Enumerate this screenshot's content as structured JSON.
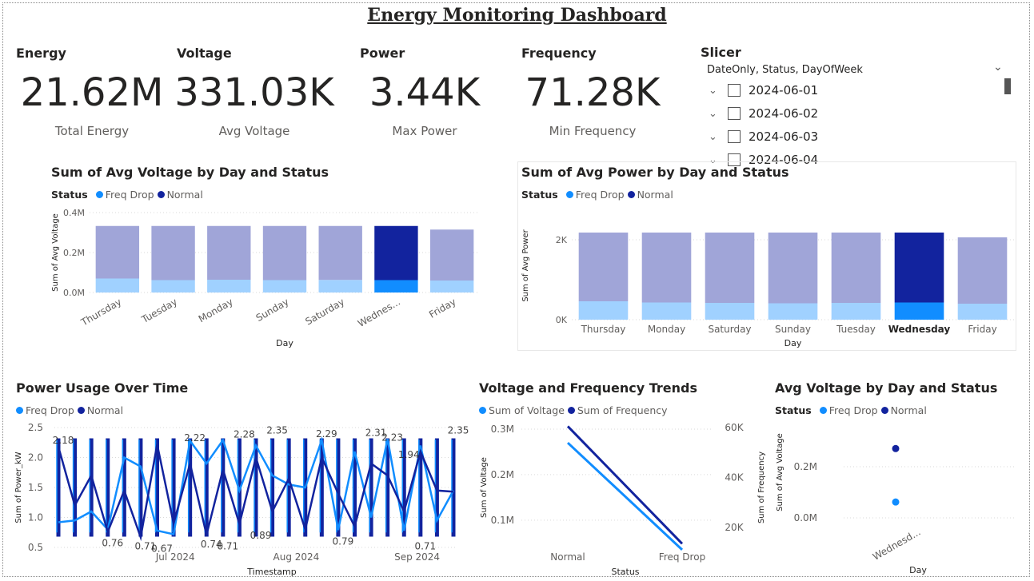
{
  "page_title": "Energy Monitoring Dashboard",
  "colors": {
    "freq_drop": "#118dff",
    "normal": "#12239e",
    "freq_drop_muted": "#a0d1ff",
    "normal_muted": "#a0a5d8",
    "grid": "#d9d9d9"
  },
  "kpis": [
    {
      "label": "Energy",
      "value": "21.62M",
      "caption": "Total Energy"
    },
    {
      "label": "Voltage",
      "value": "331.03K",
      "caption": "Avg Voltage"
    },
    {
      "label": "Power",
      "value": "3.44K",
      "caption": "Max Power"
    },
    {
      "label": "Frequency",
      "value": "71.28K",
      "caption": "Min Frequency"
    }
  ],
  "slicer": {
    "title": "Slicer",
    "header": "DateOnly, Status, DayOfWeek",
    "items": [
      "2024-06-01",
      "2024-06-02",
      "2024-06-03",
      "2024-06-04"
    ]
  },
  "legend_status_label": "Status",
  "chart_data": [
    {
      "id": "voltage_bar",
      "type": "bar",
      "title": "Sum of Avg Voltage by Day and Status",
      "xlabel": "Day",
      "ylabel": "Sum of Avg Voltage",
      "categories": [
        "Thursday",
        "Tuesday",
        "Monday",
        "Sunday",
        "Saturday",
        "Wednes...",
        "Friday"
      ],
      "highlight": "Wednes...",
      "yticks": [
        "0.0M",
        "0.2M",
        "0.4M"
      ],
      "ylim": [
        0,
        400000
      ],
      "legend": [
        "Freq Drop",
        "Normal"
      ],
      "series": [
        {
          "name": "Freq Drop",
          "values": [
            70000,
            62000,
            64000,
            62000,
            63000,
            62000,
            60000
          ]
        },
        {
          "name": "Normal",
          "values": [
            263000,
            271000,
            269000,
            271000,
            270000,
            271000,
            255000
          ]
        }
      ]
    },
    {
      "id": "power_bar",
      "type": "bar",
      "title": "Sum of Avg Power by Day and Status",
      "xlabel": "Day",
      "ylabel": "Sum of Avg Power",
      "categories": [
        "Thursday",
        "Monday",
        "Saturday",
        "Sunday",
        "Tuesday",
        "Wednesday",
        "Friday"
      ],
      "highlight": "Wednesday",
      "yticks": [
        "0K",
        "2K"
      ],
      "ylim": [
        0,
        2700
      ],
      "legend": [
        "Freq Drop",
        "Normal"
      ],
      "series": [
        {
          "name": "Freq Drop",
          "values": [
            460,
            430,
            420,
            410,
            420,
            430,
            400
          ]
        },
        {
          "name": "Normal",
          "values": [
            1720,
            1750,
            1760,
            1770,
            1760,
            1750,
            1660
          ]
        }
      ]
    },
    {
      "id": "power_line",
      "type": "line",
      "title": "Power Usage Over Time",
      "xlabel": "Timestamp",
      "ylabel": "Sum of Power_kW",
      "ylim": [
        0.5,
        2.5
      ],
      "yticks": [
        "0.5",
        "1.0",
        "1.5",
        "2.0",
        "2.5"
      ],
      "xticks": [
        "Jul 2024",
        "Aug 2024",
        "Sep 2024"
      ],
      "legend": [
        "Freq Drop",
        "Normal"
      ],
      "series": [
        {
          "name": "Freq Drop",
          "values": [
            0.92,
            0.95,
            1.1,
            0.8,
            2.0,
            1.85,
            0.78,
            0.72,
            2.28,
            1.9,
            2.29,
            1.45,
            2.2,
            1.7,
            1.55,
            1.5,
            2.29,
            0.79,
            2.1,
            1.0,
            2.31,
            0.78,
            2.2,
            0.95,
            1.45
          ]
        },
        {
          "name": "Normal",
          "values": [
            2.18,
            1.2,
            1.7,
            0.76,
            1.45,
            0.67,
            2.22,
            0.9,
            1.9,
            0.71,
            1.8,
            0.89,
            2.0,
            1.1,
            1.65,
            0.8,
            2.0,
            1.4,
            0.85,
            1.9,
            1.7,
            1.1,
            2.1,
            1.45,
            1.43
          ]
        }
      ],
      "data_labels": [
        "2.18",
        "0.76",
        "0.71",
        "0.67",
        "2.22",
        "0.74",
        "0.71",
        "2.28",
        "0.89",
        "2.35",
        "2.29",
        "0.79",
        "2.31",
        "2.23",
        "1.94",
        "0.71",
        "2.35"
      ]
    },
    {
      "id": "vf_line",
      "type": "line",
      "title": "Voltage and Frequency Trends",
      "xlabel": "Status",
      "ylabel": "Sum of Voltage",
      "y2label": "Sum of Frequency",
      "categories": [
        "Normal",
        "Freq Drop"
      ],
      "yticks": [
        "0.1M",
        "0.2M",
        "0.3M"
      ],
      "y2ticks": [
        "20K",
        "40K",
        "60K"
      ],
      "legend": [
        "Sum of Voltage",
        "Sum of Frequency"
      ],
      "series": [
        {
          "name": "Sum of Voltage",
          "values": [
            270000,
            35000
          ]
        },
        {
          "name": "Sum of Frequency",
          "values": [
            60500,
            13500
          ]
        }
      ]
    },
    {
      "id": "avg_voltage_scatter",
      "type": "scatter",
      "title": "Avg Voltage by Day and Status",
      "xlabel": "Day",
      "ylabel": "Sum of Avg Voltage",
      "categories": [
        "Wednesd..."
      ],
      "yticks": [
        "0.0M",
        "0.2M"
      ],
      "legend": [
        "Freq Drop",
        "Normal"
      ],
      "series": [
        {
          "name": "Freq Drop",
          "values": [
            62000
          ]
        },
        {
          "name": "Normal",
          "values": [
            271000
          ]
        }
      ]
    }
  ]
}
